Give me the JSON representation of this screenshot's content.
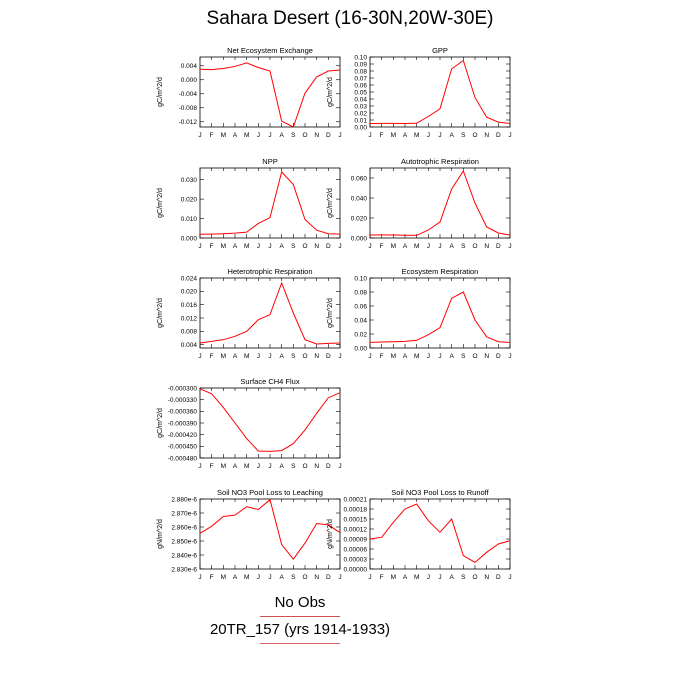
{
  "page": {
    "title": "Sahara Desert (16-30N,20W-30E)",
    "legend_obs": "No Obs",
    "legend_run": "20TR_157 (yrs 1914-1933)"
  },
  "colors": {
    "series": "#ff0000",
    "axis": "#000000"
  },
  "chart_data": [
    {
      "type": "line",
      "title": "Net Ecosystem Exchange",
      "ylabel": "gC/m^2/d",
      "x": [
        "J",
        "F",
        "M",
        "A",
        "M",
        "J",
        "J",
        "A",
        "S",
        "O",
        "N",
        "D",
        "J"
      ],
      "ylim": [
        -0.0135,
        0.0065
      ],
      "yticks": [
        0.004,
        0.0,
        -0.004,
        -0.008,
        -0.012
      ],
      "yticklabels": [
        "0.004",
        "0.000",
        "-0.004",
        "-0.008",
        "-0.012"
      ],
      "series": [
        {
          "values": [
            0.003,
            0.0029,
            0.0032,
            0.0038,
            0.0048,
            0.0035,
            0.0025,
            -0.0118,
            -0.0135,
            -0.0038,
            0.0008,
            0.0025,
            0.0028
          ]
        }
      ]
    },
    {
      "type": "line",
      "title": "GPP",
      "ylabel": "gC/m^2/d",
      "x": [
        "J",
        "F",
        "M",
        "A",
        "M",
        "J",
        "J",
        "A",
        "S",
        "O",
        "N",
        "D",
        "J"
      ],
      "ylim": [
        0.0,
        0.1
      ],
      "yticks": [
        0.0,
        0.01,
        0.02,
        0.03,
        0.04,
        0.05,
        0.06,
        0.07,
        0.08,
        0.09,
        0.1
      ],
      "yticklabels": [
        "0.00",
        "0.01",
        "0.02",
        "0.03",
        "0.04",
        "0.05",
        "0.06",
        "0.07",
        "0.08",
        "0.09",
        "0.10"
      ],
      "series": [
        {
          "values": [
            0.005,
            0.0052,
            0.0052,
            0.005,
            0.0055,
            0.015,
            0.026,
            0.083,
            0.095,
            0.042,
            0.014,
            0.007,
            0.005
          ]
        }
      ]
    },
    {
      "type": "line",
      "title": "NPP",
      "ylabel": "gC/m^2/d",
      "x": [
        "J",
        "F",
        "M",
        "A",
        "M",
        "J",
        "J",
        "A",
        "S",
        "O",
        "N",
        "D",
        "J"
      ],
      "ylim": [
        0.0,
        0.036
      ],
      "yticks": [
        0.0,
        0.01,
        0.02,
        0.03
      ],
      "yticklabels": [
        "0.000",
        "0.010",
        "0.020",
        "0.030"
      ],
      "series": [
        {
          "values": [
            0.0019,
            0.002,
            0.0022,
            0.0025,
            0.003,
            0.0075,
            0.0105,
            0.034,
            0.0275,
            0.0095,
            0.004,
            0.0022,
            0.002
          ]
        }
      ]
    },
    {
      "type": "line",
      "title": "Autotrophic Respiration",
      "ylabel": "gC/m^2/d",
      "x": [
        "J",
        "F",
        "M",
        "A",
        "M",
        "J",
        "J",
        "A",
        "S",
        "O",
        "N",
        "D",
        "J"
      ],
      "ylim": [
        0.0,
        0.07
      ],
      "yticks": [
        0.0,
        0.02,
        0.04,
        0.06
      ],
      "yticklabels": [
        "0.000",
        "0.020",
        "0.040",
        "0.060"
      ],
      "series": [
        {
          "values": [
            0.003,
            0.0031,
            0.003,
            0.0028,
            0.0026,
            0.008,
            0.016,
            0.049,
            0.067,
            0.035,
            0.011,
            0.005,
            0.003
          ]
        }
      ]
    },
    {
      "type": "line",
      "title": "Heterotrophic Respiration",
      "ylabel": "gC/m^2/d",
      "x": [
        "J",
        "F",
        "M",
        "A",
        "M",
        "J",
        "J",
        "A",
        "S",
        "O",
        "N",
        "D",
        "J"
      ],
      "ylim": [
        0.003,
        0.024
      ],
      "yticks": [
        0.004,
        0.008,
        0.012,
        0.016,
        0.02,
        0.024
      ],
      "yticklabels": [
        "0.004",
        "0.008",
        "0.012",
        "0.016",
        "0.020",
        "0.024"
      ],
      "series": [
        {
          "values": [
            0.0045,
            0.005,
            0.0055,
            0.0065,
            0.008,
            0.0115,
            0.013,
            0.0225,
            0.0135,
            0.0055,
            0.0042,
            0.0044,
            0.0045
          ]
        }
      ]
    },
    {
      "type": "line",
      "title": "Ecosystem Respiration",
      "ylabel": "gC/m^2/d",
      "x": [
        "J",
        "F",
        "M",
        "A",
        "M",
        "J",
        "J",
        "A",
        "S",
        "O",
        "N",
        "D",
        "J"
      ],
      "ylim": [
        0.0,
        0.1
      ],
      "yticks": [
        0.0,
        0.02,
        0.04,
        0.06,
        0.08,
        0.1
      ],
      "yticklabels": [
        "0.00",
        "0.02",
        "0.04",
        "0.06",
        "0.08",
        "0.10"
      ],
      "series": [
        {
          "values": [
            0.008,
            0.0085,
            0.009,
            0.0095,
            0.011,
            0.019,
            0.029,
            0.071,
            0.08,
            0.04,
            0.016,
            0.009,
            0.008
          ]
        }
      ]
    },
    {
      "type": "line",
      "title": "Surface CH4 Flux",
      "ylabel": "gC/m^2/d",
      "x": [
        "J",
        "F",
        "M",
        "A",
        "M",
        "J",
        "J",
        "A",
        "S",
        "O",
        "N",
        "D",
        "J"
      ],
      "ylim": [
        -0.00048,
        -0.0003
      ],
      "yticks": [
        -0.0003,
        -0.00033,
        -0.00036,
        -0.00039,
        -0.00042,
        -0.00045,
        -0.00048
      ],
      "yticklabels": [
        "-0.000300",
        "-0.000330",
        "-0.000360",
        "-0.000390",
        "-0.000420",
        "-0.000450",
        "-0.000480"
      ],
      "series": [
        {
          "values": [
            -0.000302,
            -0.000315,
            -0.00035,
            -0.00039,
            -0.00043,
            -0.000462,
            -0.000463,
            -0.000461,
            -0.000443,
            -0.000408,
            -0.000365,
            -0.000325,
            -0.000312
          ]
        }
      ]
    },
    {
      "type": "line",
      "title": "Soil NO3 Pool Loss to Leaching",
      "ylabel": "gN/m^2/d",
      "x": [
        "J",
        "F",
        "M",
        "A",
        "M",
        "J",
        "J",
        "A",
        "S",
        "O",
        "N",
        "D",
        "J"
      ],
      "ylim": [
        2.83e-06,
        2.88e-06
      ],
      "yticks": [
        2.83e-06,
        2.84e-06,
        2.85e-06,
        2.86e-06,
        2.87e-06,
        2.88e-06
      ],
      "yticklabels": [
        "2.830e-6",
        "2.840e-6",
        "2.850e-6",
        "2.860e-6",
        "2.870e-6",
        "2.880e-6"
      ],
      "series": [
        {
          "values": [
            2.8555e-06,
            2.8605e-06,
            2.8675e-06,
            2.8685e-06,
            2.8745e-06,
            2.8725e-06,
            2.8795e-06,
            2.8475e-06,
            2.837e-06,
            2.8485e-06,
            2.8625e-06,
            2.8615e-06,
            2.856e-06
          ]
        }
      ]
    },
    {
      "type": "line",
      "title": "Soil NO3 Pool Loss to Runoff",
      "ylabel": "gN/m^2/d",
      "x": [
        "J",
        "F",
        "M",
        "A",
        "M",
        "J",
        "J",
        "A",
        "S",
        "O",
        "N",
        "D",
        "J"
      ],
      "ylim": [
        0.0,
        0.00021
      ],
      "yticks": [
        0.0,
        3e-05,
        6e-05,
        9e-05,
        0.00012,
        0.00015,
        0.00018,
        0.00021
      ],
      "yticklabels": [
        "0.00000",
        "0.00003",
        "0.00006",
        "0.00009",
        "0.00012",
        "0.00015",
        "0.00018",
        "0.00021"
      ],
      "series": [
        {
          "values": [
            9e-05,
            9.5e-05,
            0.00014,
            0.00018,
            0.000195,
            0.000145,
            0.00011,
            0.00015,
            4e-05,
            2e-05,
            5e-05,
            7.5e-05,
            8.5e-05
          ]
        }
      ]
    }
  ]
}
